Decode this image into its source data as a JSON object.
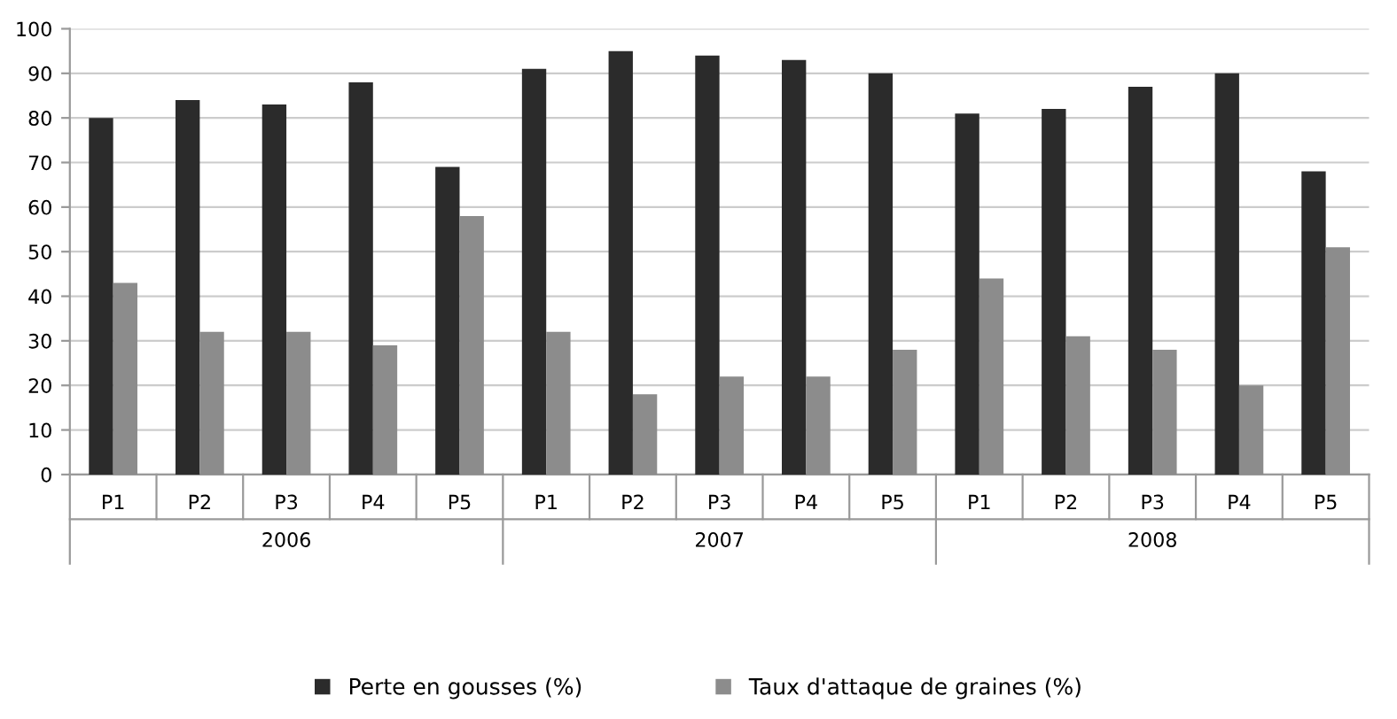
{
  "chart_data": {
    "type": "bar",
    "categories": [
      "P1",
      "P2",
      "P3",
      "P4",
      "P5",
      "P1",
      "P2",
      "P3",
      "P4",
      "P5",
      "P1",
      "P2",
      "P3",
      "P4",
      "P5"
    ],
    "series": [
      {
        "name": "Perte en gousses (%)",
        "color": "#2b2b2b",
        "values": [
          80,
          84,
          83,
          88,
          69,
          91,
          95,
          94,
          93,
          90,
          81,
          82,
          87,
          90,
          68
        ]
      },
      {
        "name": "Taux d'attaque de graines (%)",
        "color": "#8c8c8c",
        "values": [
          43,
          32,
          32,
          29,
          58,
          32,
          18,
          22,
          22,
          28,
          44,
          31,
          28,
          20,
          51
        ]
      }
    ],
    "annotations": [
      "2006",
      "2007",
      "2008"
    ],
    "ylim": [
      0,
      100
    ],
    "yticks": [
      0,
      10,
      20,
      30,
      40,
      50,
      60,
      70,
      80,
      90,
      100
    ],
    "grid": "y",
    "legend": "bottom"
  }
}
